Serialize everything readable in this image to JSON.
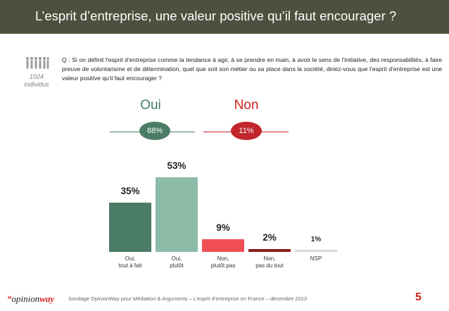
{
  "header": {
    "title": "L’esprit d’entreprise, une valeur positive qu’il faut encourager ?"
  },
  "sample": {
    "count": "1024",
    "unit": "individus"
  },
  "question": "Q : Si on définit l'esprit d'entreprise comme la tendance à agir, à se prendre en main, à avoir le sens de l'initiative, des responsabilités, à faire preuve de volontarisme et de détermination, quel que soit son métier ou sa place dans la société, diriez-vous que l'esprit d'entreprise est une valeur positive qu'il faut encourager ?",
  "groups": {
    "oui": {
      "label": "Oui",
      "total": "88%",
      "color": "#4a7c66"
    },
    "non": {
      "label": "Non",
      "total": "11%",
      "color": "#c0262c"
    }
  },
  "chart_data": {
    "type": "bar",
    "title": "",
    "xlabel": "",
    "ylabel": "",
    "ylim": [
      0,
      60
    ],
    "grid": false,
    "categories": [
      [
        "Oui,",
        "tout à fait"
      ],
      [
        "Oui,",
        "plutôt"
      ],
      [
        "Non,",
        "plutôt pas"
      ],
      [
        "Non,",
        "pas du tout"
      ],
      [
        "NSP"
      ]
    ],
    "values": [
      35,
      53,
      9,
      2,
      1
    ],
    "value_labels": [
      "35%",
      "53%",
      "9%",
      "2%",
      "1%"
    ],
    "colors": [
      "#4a7c66",
      "#8cbba8",
      "#f05055",
      "#8b1a1a",
      "#d8d8d8"
    ]
  },
  "footer": {
    "logo_mark": "“",
    "logo_text": "opinion",
    "logo_text2": "way",
    "source": "Sondage OpinionWay pour Médiation & Arguments – L’esprit d’entreprise en France – décembre 2013",
    "page": "5"
  }
}
